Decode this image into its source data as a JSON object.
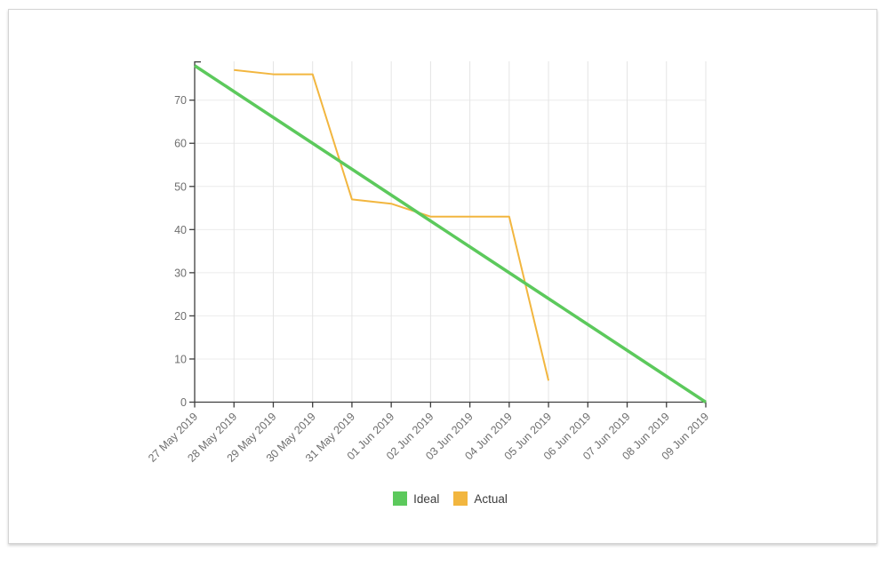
{
  "chart_data": {
    "type": "line",
    "title": "",
    "xlabel": "",
    "ylabel": "",
    "categories": [
      "27 May 2019",
      "28 May 2019",
      "29 May 2019",
      "30 May 2019",
      "31 May 2019",
      "01 Jun 2019",
      "02 Jun 2019",
      "03 Jun 2019",
      "04 Jun 2019",
      "05 Jun 2019",
      "06 Jun 2019",
      "07 Jun 2019",
      "08 Jun 2019",
      "09 Jun 2019"
    ],
    "series": [
      {
        "name": "Ideal",
        "color": "#5cc95c",
        "line_width": 3.5,
        "values": [
          78,
          72,
          66,
          60,
          54,
          48,
          42,
          36,
          30,
          24,
          18,
          12,
          6,
          0
        ]
      },
      {
        "name": "Actual",
        "color": "#f2b63f",
        "line_width": 2,
        "values": [
          null,
          77,
          76,
          76,
          47,
          46,
          43,
          43,
          43,
          5,
          null,
          null,
          null,
          null
        ]
      }
    ],
    "ylim": [
      0,
      79
    ],
    "yticks": [
      0,
      10,
      20,
      30,
      40,
      50,
      60,
      70
    ],
    "grid": true,
    "legend_position": "bottom"
  }
}
